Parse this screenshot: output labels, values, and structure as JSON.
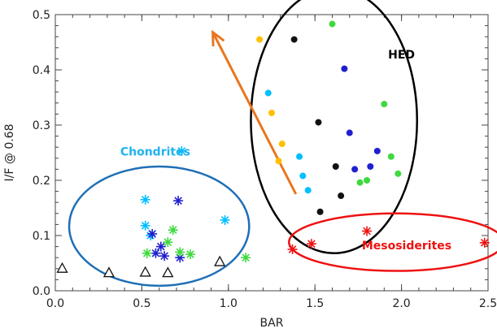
{
  "chart_data": {
    "type": "scatter",
    "title": "",
    "xlabel": "BAR",
    "ylabel": "I/F @ 0.68",
    "xlim": [
      0.0,
      2.5
    ],
    "ylim": [
      0.0,
      0.5
    ],
    "x_ticks": [
      "0.0",
      "0.5",
      "1.0",
      "1.5",
      "2.0",
      "2.5"
    ],
    "y_ticks": [
      "0.0",
      "0.1",
      "0.2",
      "0.3",
      "0.4",
      "0.5"
    ],
    "grid": false,
    "series": [
      {
        "marker": "asterisk",
        "color": "#00bfff",
        "points": [
          [
            0.52,
            0.165
          ],
          [
            0.52,
            0.118
          ],
          [
            0.55,
            0.1
          ],
          [
            0.98,
            0.128
          ],
          [
            0.73,
            0.253
          ]
        ]
      },
      {
        "marker": "asterisk",
        "color": "#1f1fcf",
        "points": [
          [
            0.56,
            0.103
          ],
          [
            0.58,
            0.068
          ],
          [
            0.61,
            0.08
          ],
          [
            0.63,
            0.063
          ],
          [
            0.71,
            0.163
          ],
          [
            0.72,
            0.06
          ]
        ]
      },
      {
        "marker": "asterisk",
        "color": "#3ed93e",
        "points": [
          [
            0.53,
            0.068
          ],
          [
            0.65,
            0.088
          ],
          [
            0.68,
            0.11
          ],
          [
            0.72,
            0.07
          ],
          [
            0.78,
            0.066
          ],
          [
            1.1,
            0.06
          ]
        ]
      },
      {
        "marker": "asterisk",
        "color": "#ee1111",
        "points": [
          [
            1.37,
            0.075
          ],
          [
            1.48,
            0.085
          ],
          [
            1.8,
            0.108
          ],
          [
            2.48,
            0.087
          ]
        ]
      },
      {
        "marker": "triangle",
        "color": "#111111",
        "points": [
          [
            0.04,
            0.04
          ],
          [
            0.31,
            0.032
          ],
          [
            0.52,
            0.033
          ],
          [
            0.65,
            0.032
          ],
          [
            0.95,
            0.052
          ]
        ]
      },
      {
        "marker": "dot",
        "color": "#111111",
        "points": [
          [
            1.38,
            0.455
          ],
          [
            1.52,
            0.305
          ],
          [
            1.62,
            0.225
          ],
          [
            1.65,
            0.172
          ],
          [
            1.53,
            0.143
          ]
        ]
      },
      {
        "marker": "dot",
        "color": "#00bfff",
        "points": [
          [
            1.23,
            0.358
          ],
          [
            1.41,
            0.243
          ],
          [
            1.43,
            0.208
          ],
          [
            1.46,
            0.182
          ]
        ]
      },
      {
        "marker": "dot",
        "color": "#ffc000",
        "points": [
          [
            1.18,
            0.455
          ],
          [
            1.25,
            0.322
          ],
          [
            1.29,
            0.235
          ],
          [
            1.31,
            0.266
          ]
        ]
      },
      {
        "marker": "dot",
        "color": "#1f1fcf",
        "points": [
          [
            1.67,
            0.402
          ],
          [
            1.7,
            0.286
          ],
          [
            1.73,
            0.22
          ],
          [
            1.82,
            0.225
          ],
          [
            1.86,
            0.253
          ]
        ]
      },
      {
        "marker": "dot",
        "color": "#3ed93e",
        "points": [
          [
            1.6,
            0.483
          ],
          [
            1.76,
            0.196
          ],
          [
            1.8,
            0.2
          ],
          [
            1.9,
            0.338
          ],
          [
            1.94,
            0.243
          ],
          [
            1.98,
            0.212
          ]
        ]
      }
    ],
    "groups": [
      {
        "label": "Chondrites",
        "color": "#1fb3ee",
        "ellipse_color": "#1f6fb5",
        "cx": 0.6,
        "cy": 0.117,
        "rx": 0.52,
        "ry": 0.108
      },
      {
        "label": "HED",
        "color": "#000000",
        "ellipse_color": "#000000",
        "cx": 1.61,
        "cy": 0.308,
        "rx": 0.48,
        "ry": 0.24
      },
      {
        "label": "Mesosiderites",
        "color": "#ee1111",
        "ellipse_color": "#ee1111",
        "cx": 1.97,
        "cy": 0.088,
        "rx": 0.62,
        "ry": 0.052
      }
    ],
    "arrow": {
      "color": "#e8761e",
      "from": [
        1.39,
        0.175
      ],
      "to": [
        0.91,
        0.468
      ]
    }
  }
}
